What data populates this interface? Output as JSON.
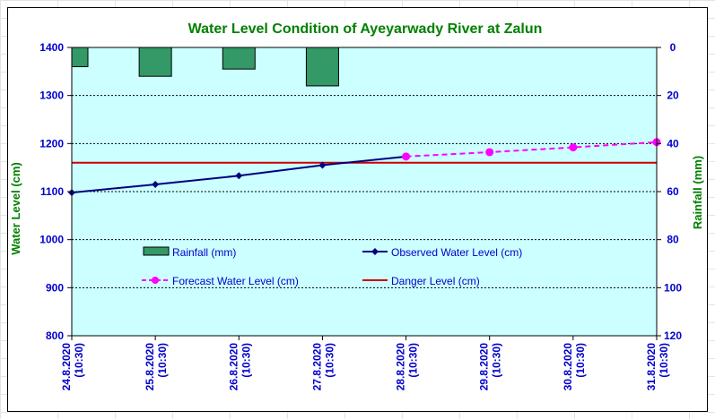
{
  "chart_data": {
    "type": "line",
    "title": "Water Level Condition of Ayeyarwady River at Zalun",
    "ylabel": "Water Level (cm)",
    "y2label": "Rainfall (mm)",
    "ylim": [
      800,
      1400
    ],
    "y_ticks": [
      800,
      900,
      1000,
      1100,
      1200,
      1300,
      1400
    ],
    "y2lim": [
      0,
      120
    ],
    "y2_inverted": true,
    "y2_ticks": [
      0,
      20,
      40,
      60,
      80,
      100,
      120
    ],
    "grid": true,
    "categories": [
      [
        "24.8.2020",
        "(10:30)"
      ],
      [
        "25.8.2020",
        "(10:30)"
      ],
      [
        "26.8.2020",
        "(10:30)"
      ],
      [
        "27.8.2020",
        "(10:30)"
      ],
      [
        "28.8.2020",
        "(10:30)"
      ],
      [
        "29.8.2020",
        "(10:30)"
      ],
      [
        "30.8.2020",
        "(10:30)"
      ],
      [
        "31.8.2020",
        "(10:30)"
      ]
    ],
    "rainfall": {
      "name": "Rainfall (mm)",
      "color": "#339966",
      "values": [
        8,
        12,
        9,
        16,
        0,
        0,
        0,
        0
      ]
    },
    "observed": {
      "name": "Observed Water Level (cm)",
      "color": "#000080",
      "values": [
        1098,
        1115,
        1133,
        1155,
        1173,
        null,
        null,
        null
      ]
    },
    "forecast": {
      "name": "Forecast Water Level (cm)",
      "color": "#ff00ff",
      "values": [
        null,
        null,
        null,
        null,
        1173,
        1182,
        1192,
        1203
      ]
    },
    "danger": {
      "name": "Danger Level (cm)",
      "color": "#cc0000",
      "value": 1160
    },
    "plot_background": "#ccffff",
    "title_color": "#008000",
    "axis_title_color": "#008000",
    "tick_color": "#0000cc"
  }
}
